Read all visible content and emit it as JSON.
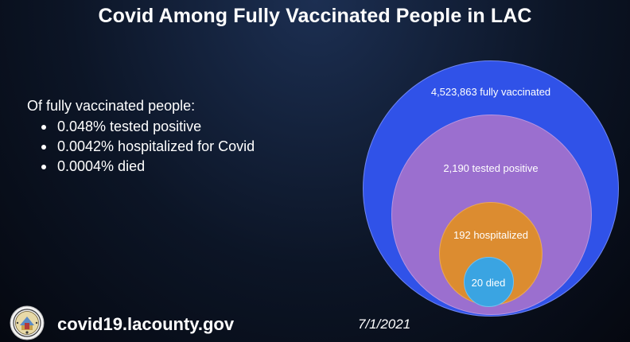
{
  "title": "Covid Among Fully Vaccinated People in LAC",
  "stats": {
    "intro": "Of fully vaccinated people:",
    "items": [
      "0.048% tested positive",
      "0.0042% hospitalized for Covid",
      "0.0004% died"
    ]
  },
  "circles": {
    "vaccinated": {
      "label": "4,523,863 fully vaccinated",
      "count": 4523863,
      "color": "#3052e8"
    },
    "tested_positive": {
      "label": "2,190 tested positive",
      "count": 2190,
      "color": "#9b6fcf"
    },
    "hospitalized": {
      "label": "192 hospitalized",
      "count": 192,
      "color": "#dc8c30"
    },
    "died": {
      "label": "20 died",
      "count": 20,
      "color": "#3aa4e2"
    }
  },
  "footer": {
    "logo": "la-county-seal-icon",
    "website": "covid19.lacounty.gov",
    "date": "7/1/2021"
  }
}
